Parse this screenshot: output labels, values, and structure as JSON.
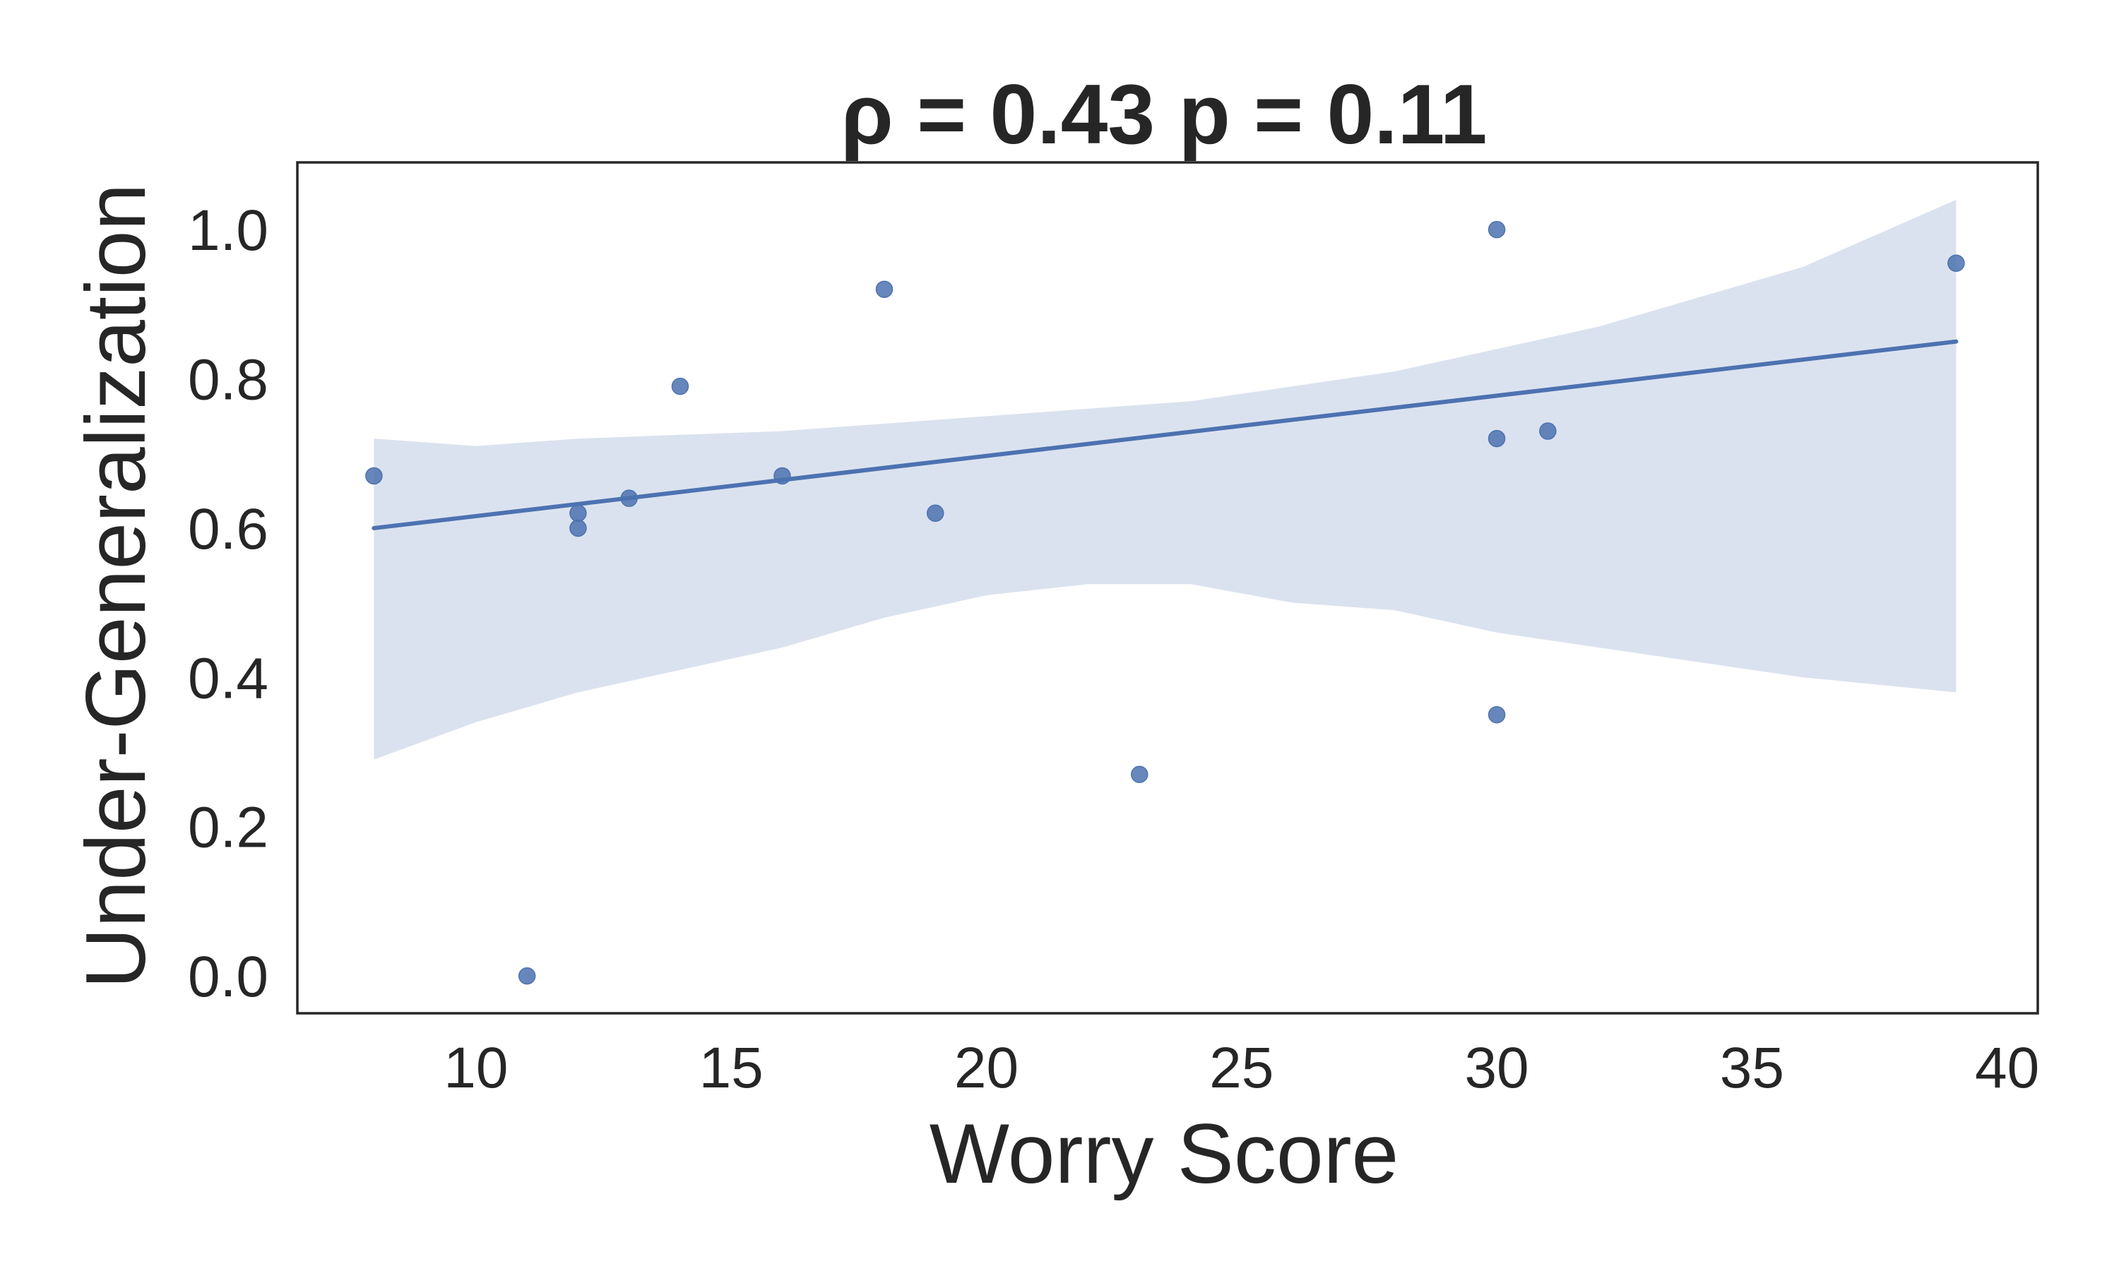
{
  "chart_data": {
    "type": "scatter",
    "title": "ρ = 0.43 p = 0.11",
    "xlabel": "Worry Score",
    "ylabel": "Under-Generalization",
    "xlim": [
      6.5,
      40.6
    ],
    "ylim": [
      -0.05,
      1.09
    ],
    "xticks": [
      10,
      15,
      20,
      25,
      30,
      35,
      40
    ],
    "yticks": [
      0.0,
      0.2,
      0.4,
      0.6,
      0.8,
      1.0
    ],
    "xtick_labels": [
      "10",
      "15",
      "20",
      "25",
      "30",
      "35",
      "40"
    ],
    "ytick_labels": [
      "0.0",
      "0.2",
      "0.4",
      "0.6",
      "0.8",
      "1.0"
    ],
    "grid": false,
    "colors": {
      "points": "#4c72b0",
      "line": "#4c72b0",
      "band": "#dbe2ef",
      "axes": "#262626"
    },
    "points": [
      {
        "x": 8,
        "y": 0.67
      },
      {
        "x": 11,
        "y": 0.0
      },
      {
        "x": 12,
        "y": 0.62
      },
      {
        "x": 12,
        "y": 0.6
      },
      {
        "x": 13,
        "y": 0.64
      },
      {
        "x": 14,
        "y": 0.79
      },
      {
        "x": 16,
        "y": 0.67
      },
      {
        "x": 18,
        "y": 0.92
      },
      {
        "x": 19,
        "y": 0.62
      },
      {
        "x": 23,
        "y": 0.27
      },
      {
        "x": 30,
        "y": 1.0
      },
      {
        "x": 30,
        "y": 0.72
      },
      {
        "x": 30,
        "y": 0.35
      },
      {
        "x": 31,
        "y": 0.73
      },
      {
        "x": 39,
        "y": 0.955
      }
    ],
    "regression": {
      "x": [
        8,
        39
      ],
      "y": [
        0.6,
        0.85
      ]
    },
    "confidence_band": {
      "x": [
        8,
        10,
        12,
        14,
        16,
        18,
        20,
        22,
        24,
        26,
        28,
        30,
        32,
        34,
        36,
        39
      ],
      "upper": [
        0.72,
        0.71,
        0.72,
        0.725,
        0.73,
        0.74,
        0.75,
        0.76,
        0.77,
        0.79,
        0.81,
        0.84,
        0.87,
        0.91,
        0.95,
        1.04
      ],
      "lower": [
        0.29,
        0.34,
        0.38,
        0.41,
        0.44,
        0.48,
        0.51,
        0.525,
        0.525,
        0.5,
        0.49,
        0.46,
        0.44,
        0.42,
        0.4,
        0.38
      ]
    }
  }
}
